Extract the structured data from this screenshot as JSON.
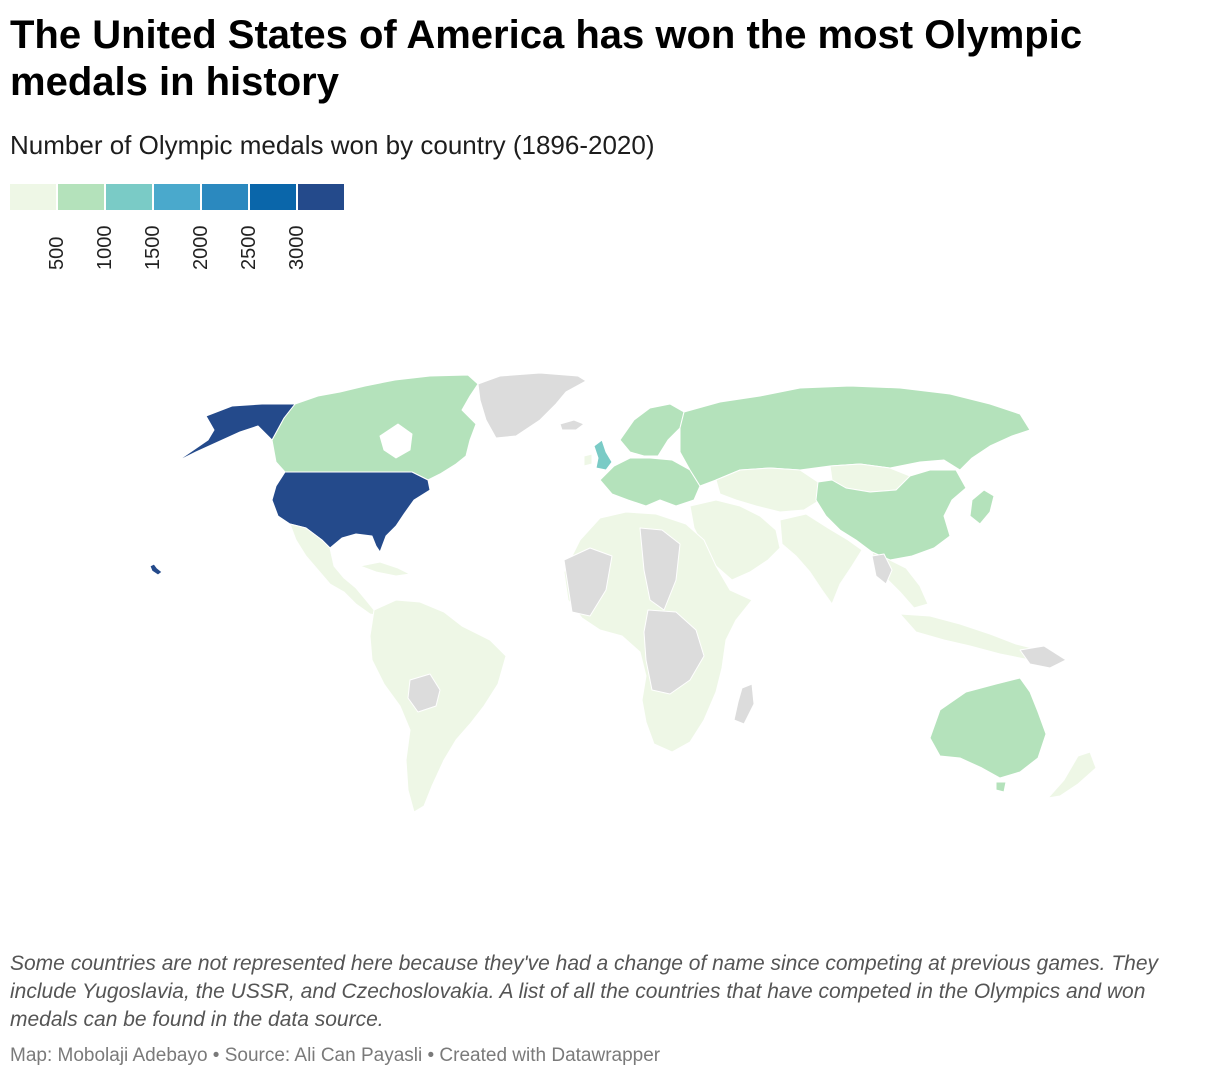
{
  "title": "The United States of America has won the most Olympic medals in history",
  "subtitle": "Number of Olympic medals won by country (1896-2020)",
  "legend": {
    "colors": [
      "#eef7e6",
      "#b4e2bb",
      "#7acbc6",
      "#4aa9cc",
      "#2b89bf",
      "#0a66aa",
      "#244a8b"
    ],
    "ticks": [
      "500",
      "1000",
      "1500",
      "2000",
      "2500",
      "3000"
    ]
  },
  "map": {
    "no_data_color": "#dcdcdc",
    "tiers": {
      "usa": "#244a8b",
      "uk": "#7acbc6",
      "mid": "#b4e2bb",
      "low": "#eef7e6",
      "nodata": "#dcdcdc"
    }
  },
  "notes": "Some countries are not represented here because they've had a change of name since competing at previous games. They include Yugoslavia, the USSR, and Czechoslovakia. A list of all the countries that have competed in the Olympics and won medals can be found in the data source.",
  "credits": "Map: Mobolaji Adebayo • Source: Ali Can Payasli • Created with Datawrapper"
}
